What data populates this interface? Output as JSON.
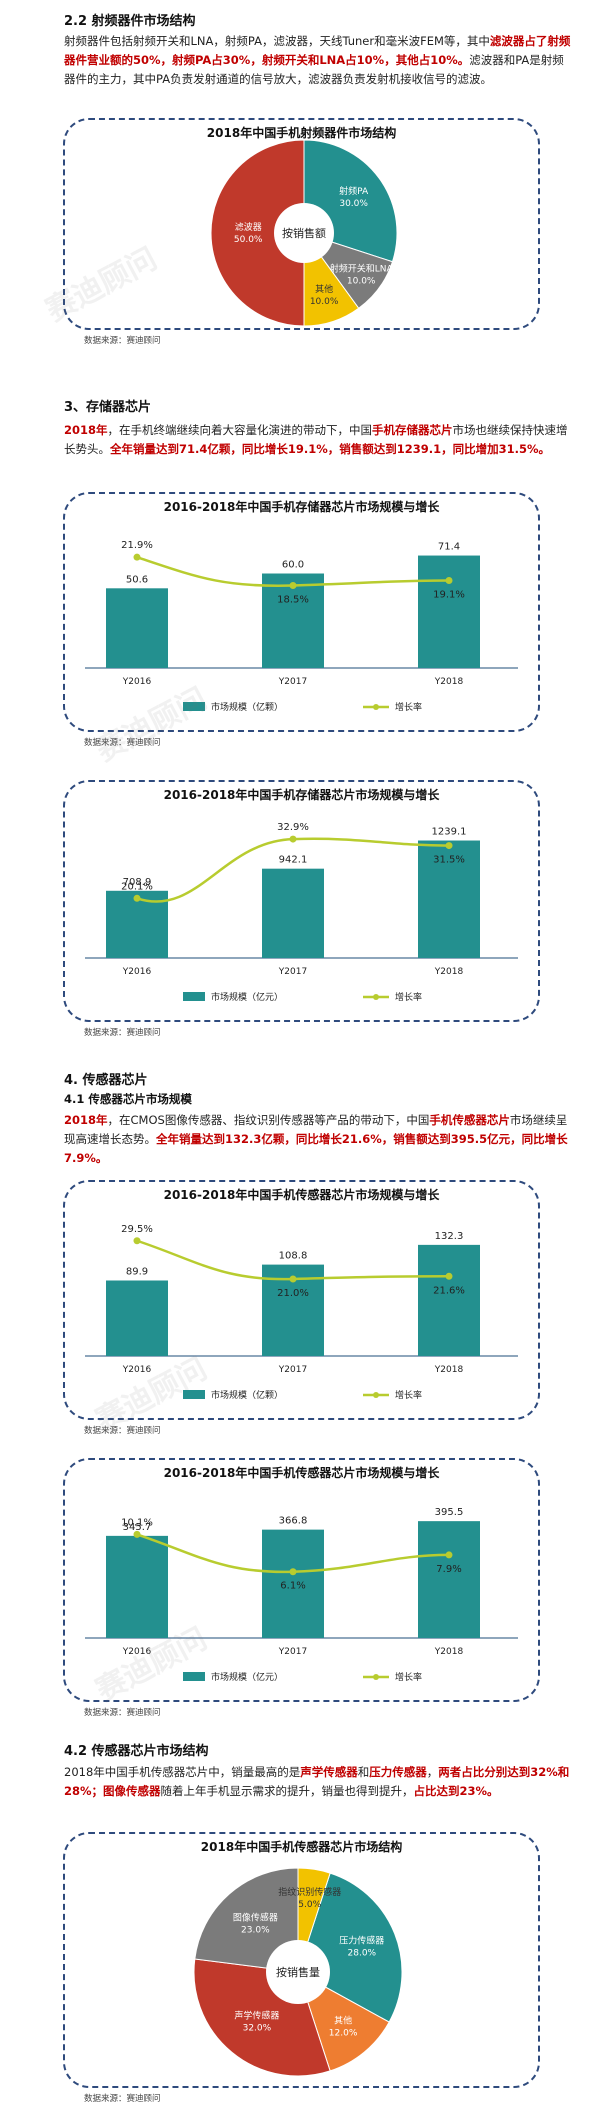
{
  "section_rf": {
    "heading": "2.2 射频器件市场结构",
    "para_plain1": "射频器件包括射频开关和LNA，射频PA，滤波器，天线Tuner和毫米波FEM等，其中",
    "para_red1": "滤波器占了射频器件营业额的50%，射频PA占30%，射频开关和LNA占10%，其他占10%。",
    "para_plain2": "滤波器和PA是射频器件的主力，其中PA负责发射通道的信号放大，滤波器负责发射机接收信号的滤波。",
    "source": "数据来源：赛迪顾问"
  },
  "section_storage": {
    "heading": "3、存储器芯片",
    "para_red1": "2018年",
    "para_plain1": "，在手机终端继续向着大容量化演进的带动下，中国",
    "para_red2": "手机存储器芯片",
    "para_plain2": "市场也继续保持快速增长势头。",
    "para_red3": "全年销量达到71.4亿颗，同比增长19.1%，销售额达到1239.1，同比增加31.5%。",
    "source1": "数据来源：赛迪顾问",
    "source2": "数据来源：赛迪顾问"
  },
  "section_sensor": {
    "heading": "4. 传感器芯片",
    "subheading": "4.1 传感器芯片市场规模",
    "para_red1": "2018年",
    "para_plain1": "，在CMOS图像传感器、指纹识别传感器等产品的带动下，中国",
    "para_red2": "手机传感器芯片",
    "para_plain2": "市场继续呈现高速增长态势。",
    "para_red3": "全年销量达到132.3亿颗，同比增长21.6%，销售额达到395.5亿元，同比增长7.9%。",
    "source1": "数据来源：赛迪顾问",
    "source2": "数据来源：赛迪顾问"
  },
  "section_sensor_structure": {
    "heading": "4.2 传感器芯片市场结构",
    "para_plain1": "2018年中国手机传感器芯片中，销量最高的是",
    "para_red1": "声学传感器",
    "para_plain2": "和",
    "para_red2": "压力传感器",
    "para_plain3": "，",
    "para_red3": "两者占比分别达到32%和28%；图像传感器",
    "para_plain4": "随着上年手机显示需求的提升，销量也得到提升，",
    "para_red4": "占比达到23%。",
    "source": "数据来源：赛迪顾问"
  },
  "watermark": {
    "brand": "赛迪顾问"
  },
  "colors": {
    "teal": "#23908f",
    "red": "#c0392b",
    "gray": "#7b7b7b",
    "yellow": "#f2c200",
    "orange": "#ee7d31",
    "lime": "#b8cc2f",
    "frame": "#2e4a7d"
  },
  "chart_data": [
    {
      "type": "pie",
      "title": "2018年中国手机射频器件市场结构",
      "center_label": "按销售额",
      "slices": [
        {
          "label": "射频PA",
          "value": 30.0,
          "display": "30.0%",
          "color": "#23908f"
        },
        {
          "label": "射频开关和LNA",
          "value": 10.0,
          "display": "10.0%",
          "color": "#7b7b7b"
        },
        {
          "label": "其他",
          "value": 10.0,
          "display": "10.0%",
          "color": "#f2c200"
        },
        {
          "label": "滤波器",
          "value": 50.0,
          "display": "50.0%",
          "color": "#c0392b"
        }
      ]
    },
    {
      "type": "bar",
      "title": "2016-2018年中国手机存储器芯片市场规模与增长",
      "categories": [
        "Y2016",
        "Y2017",
        "Y2018"
      ],
      "series": [
        {
          "name": "市场规模（亿颗）",
          "kind": "bar",
          "values": [
            50.6,
            60.0,
            71.4
          ],
          "labels": [
            "50.6",
            "60.0",
            "71.4"
          ]
        },
        {
          "name": "增长率",
          "kind": "line",
          "values": [
            21.9,
            18.5,
            19.1
          ],
          "labels": [
            "21.9%",
            "18.5%",
            "19.1%"
          ]
        }
      ]
    },
    {
      "type": "bar",
      "title": "2016-2018年中国手机存储器芯片市场规模与增长",
      "categories": [
        "Y2016",
        "Y2017",
        "Y2018"
      ],
      "series": [
        {
          "name": "市场规模（亿元）",
          "kind": "bar",
          "values": [
            708.9,
            942.1,
            1239.1
          ],
          "labels": [
            "708.9",
            "942.1",
            "1239.1"
          ]
        },
        {
          "name": "增长率",
          "kind": "line",
          "values": [
            20.1,
            32.9,
            31.5
          ],
          "labels": [
            "20.1%",
            "32.9%",
            "31.5%"
          ]
        }
      ]
    },
    {
      "type": "bar",
      "title": "2016-2018年中国手机传感器芯片市场规模与增长",
      "categories": [
        "Y2016",
        "Y2017",
        "Y2018"
      ],
      "series": [
        {
          "name": "市场规模（亿颗）",
          "kind": "bar",
          "values": [
            89.9,
            108.8,
            132.3
          ],
          "labels": [
            "89.9",
            "108.8",
            "132.3"
          ]
        },
        {
          "name": "增长率",
          "kind": "line",
          "values": [
            29.5,
            21.0,
            21.6
          ],
          "labels": [
            "29.5%",
            "21.0%",
            "21.6%"
          ]
        }
      ]
    },
    {
      "type": "bar",
      "title": "2016-2018年中国手机传感器芯片市场规模与增长",
      "categories": [
        "Y2016",
        "Y2017",
        "Y2018"
      ],
      "series": [
        {
          "name": "市场规模（亿元）",
          "kind": "bar",
          "values": [
            345.7,
            366.8,
            395.5
          ],
          "labels": [
            "345.7",
            "366.8",
            "395.5"
          ]
        },
        {
          "name": "增长率",
          "kind": "line",
          "values": [
            10.1,
            6.1,
            7.9
          ],
          "labels": [
            "10.1%",
            "6.1%",
            "7.9%"
          ]
        }
      ]
    },
    {
      "type": "pie",
      "title": "2018年中国手机传感器芯片市场结构",
      "center_label": "按销售量",
      "slices": [
        {
          "label": "压力传感器",
          "value": 28.0,
          "display": "28.0%",
          "color": "#23908f"
        },
        {
          "label": "其他",
          "value": 12.0,
          "display": "12.0%",
          "color": "#ee7d31"
        },
        {
          "label": "声学传感器",
          "value": 32.0,
          "display": "32.0%",
          "color": "#c0392b"
        },
        {
          "label": "图像传感器",
          "value": 23.0,
          "display": "23.0%",
          "color": "#7b7b7b"
        },
        {
          "label": "指纹识别传感器",
          "value": 5.0,
          "display": "5.0%",
          "color": "#f2c200"
        }
      ]
    }
  ]
}
